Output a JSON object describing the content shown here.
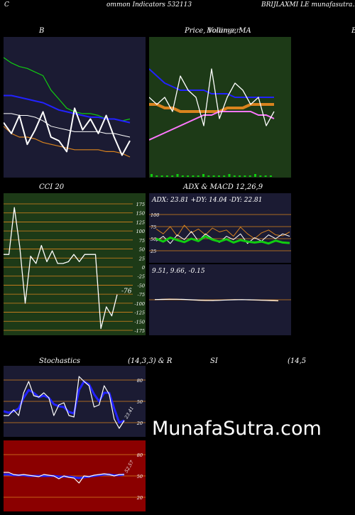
{
  "header": {
    "left_letter": "C",
    "center": "ommon  Indicators 532113",
    "right": "BRIJLAXMI LE munafasutra.in"
  },
  "titles": {
    "bb": "B",
    "price": "Price,  Volume,  MA",
    "price_overlay": "Bollinger",
    "right_cut": "B",
    "cci": "CCI 20",
    "adx_macd": "ADX  & MACD 12,26,9",
    "stoch": "Stochastics",
    "stoch_params": "(14,3,3) & R",
    "rsi": "SI",
    "rsi_params": "(14,5"
  },
  "watermark": "MunafaSutra.com",
  "colors": {
    "navy_bg": "#1b1b33",
    "green_bg": "#1d3a17",
    "red_bg": "#8b0000",
    "orange": "#d9831e",
    "blue": "#2222ff",
    "green": "#11cc11",
    "white": "#ffffff"
  },
  "chart_data": [
    {
      "type": "line",
      "panel": "bollinger",
      "series": [
        {
          "values": [
            148,
            145,
            143,
            142,
            140,
            138,
            130,
            125,
            120,
            118,
            117,
            117,
            116,
            114,
            114,
            113,
            114
          ]
        },
        {
          "values": [
            127,
            127,
            126,
            125,
            124,
            123,
            121,
            119,
            118,
            117,
            116,
            115,
            115,
            114,
            114,
            113,
            112
          ]
        },
        {
          "values": [
            117,
            117,
            116,
            116,
            115,
            113,
            110,
            109,
            108,
            107,
            107,
            107,
            107,
            106,
            106,
            105,
            104
          ]
        },
        {
          "values": [
            110,
            106,
            104,
            104,
            103,
            101,
            100,
            99,
            98,
            97,
            97,
            97,
            97,
            96,
            96,
            95,
            93
          ]
        },
        {
          "values": [
            112,
            106,
            116,
            100,
            108,
            118,
            104,
            102,
            96,
            120,
            108,
            114,
            106,
            116,
            104,
            94,
            102
          ]
        }
      ]
    },
    {
      "type": "line",
      "panel": "price-volume-ma",
      "series": [
        {
          "values": [
            112,
            110,
            108,
            107,
            106,
            106,
            106,
            106,
            105,
            105,
            105,
            104,
            104,
            104,
            104,
            104,
            104
          ]
        },
        {
          "values": [
            102,
            102,
            101,
            101,
            100,
            100,
            100,
            100,
            100,
            100,
            101,
            101,
            101,
            102,
            102,
            102,
            102
          ]
        },
        {
          "values": [
            92,
            93,
            94,
            95,
            96,
            97,
            98,
            99,
            99,
            100,
            100,
            100,
            100,
            100,
            99,
            99,
            98
          ]
        },
        {
          "values": [
            104,
            102,
            104,
            100,
            110,
            106,
            104,
            96,
            112,
            98,
            104,
            108,
            106,
            102,
            104,
            96,
            100
          ]
        }
      ]
    },
    {
      "type": "line",
      "panel": "cci",
      "ylim": [
        -175,
        175
      ],
      "yticks": [
        175,
        150,
        125,
        100,
        75,
        50,
        25,
        0,
        -25,
        -50,
        -75,
        -100,
        -125,
        -150,
        -175
      ],
      "last_label": "-76",
      "series": [
        {
          "values": [
            35,
            35,
            165,
            55,
            -100,
            30,
            10,
            60,
            15,
            45,
            10,
            10,
            15,
            35,
            15,
            35,
            35,
            35,
            -170,
            -110,
            -135,
            -76
          ]
        }
      ]
    },
    {
      "type": "line",
      "panel": "adx",
      "ylim": [
        0,
        100
      ],
      "yticks": [
        100,
        75,
        50,
        25
      ],
      "text": "ADX: 23.81  +DY: 14.04  -DY: 22.81",
      "series": [
        {
          "values": [
            70,
            60,
            75,
            55,
            78,
            62,
            70,
            58,
            72,
            64,
            68,
            55,
            74,
            60,
            50,
            62,
            68,
            58,
            56,
            64
          ]
        },
        {
          "values": [
            45,
            55,
            40,
            58,
            48,
            65,
            45,
            60,
            50,
            42,
            55,
            48,
            60,
            40,
            52,
            45,
            58,
            50,
            60,
            55
          ]
        },
        {
          "values": [
            50,
            44,
            52,
            47,
            43,
            50,
            45,
            55,
            48,
            44,
            49,
            42,
            47,
            44,
            42,
            44,
            40,
            46,
            42,
            41
          ]
        }
      ]
    },
    {
      "type": "line",
      "panel": "macd",
      "text": "9.51,  9.66,  -0.15",
      "series": [
        {
          "values": [
            0,
            0.4,
            0.6,
            0.5,
            0.2,
            -0.2,
            -0.5,
            -0.7,
            -0.6,
            -0.3,
            0,
            0.2,
            0.1,
            -0.1,
            -0.3,
            -0.5,
            -0.8,
            -1.0
          ]
        },
        {
          "values": [
            0.2,
            0.3,
            0.4,
            0.4,
            0.3,
            0,
            -0.3,
            -0.5,
            -0.6,
            -0.4,
            -0.2,
            0,
            0.1,
            0,
            -0.2,
            -0.4,
            -0.6,
            -0.8
          ]
        }
      ]
    },
    {
      "type": "line",
      "panel": "stochastics",
      "ylim": [
        0,
        100
      ],
      "yticks": [
        80,
        50,
        20
      ],
      "last_label": "23.41",
      "series": [
        {
          "values": [
            30,
            30,
            38,
            30,
            62,
            78,
            58,
            56,
            62,
            55,
            30,
            45,
            48,
            30,
            28,
            85,
            78,
            72,
            42,
            45,
            72,
            60,
            25,
            12,
            23
          ]
        },
        {
          "values": [
            36,
            34,
            36,
            40,
            55,
            66,
            62,
            56,
            58,
            55,
            46,
            43,
            42,
            35,
            33,
            66,
            78,
            74,
            60,
            50,
            62,
            62,
            40,
            20,
            23
          ]
        }
      ]
    },
    {
      "type": "line",
      "panel": "rsi",
      "ylim": [
        0,
        100
      ],
      "yticks": [
        80,
        50,
        20
      ],
      "last_label": "52.57",
      "series": [
        {
          "values": [
            55,
            55,
            52,
            51,
            52,
            51,
            50,
            49,
            52,
            51,
            50,
            46,
            50,
            48,
            47,
            40,
            50,
            49,
            51,
            52,
            53,
            52,
            50,
            52,
            52
          ]
        },
        {
          "values": [
            52,
            52,
            51,
            51,
            51,
            50,
            50,
            50,
            50,
            50,
            50,
            49,
            49,
            49,
            48,
            47,
            48,
            49,
            50,
            51,
            52,
            52,
            51,
            51,
            52
          ]
        }
      ]
    }
  ]
}
